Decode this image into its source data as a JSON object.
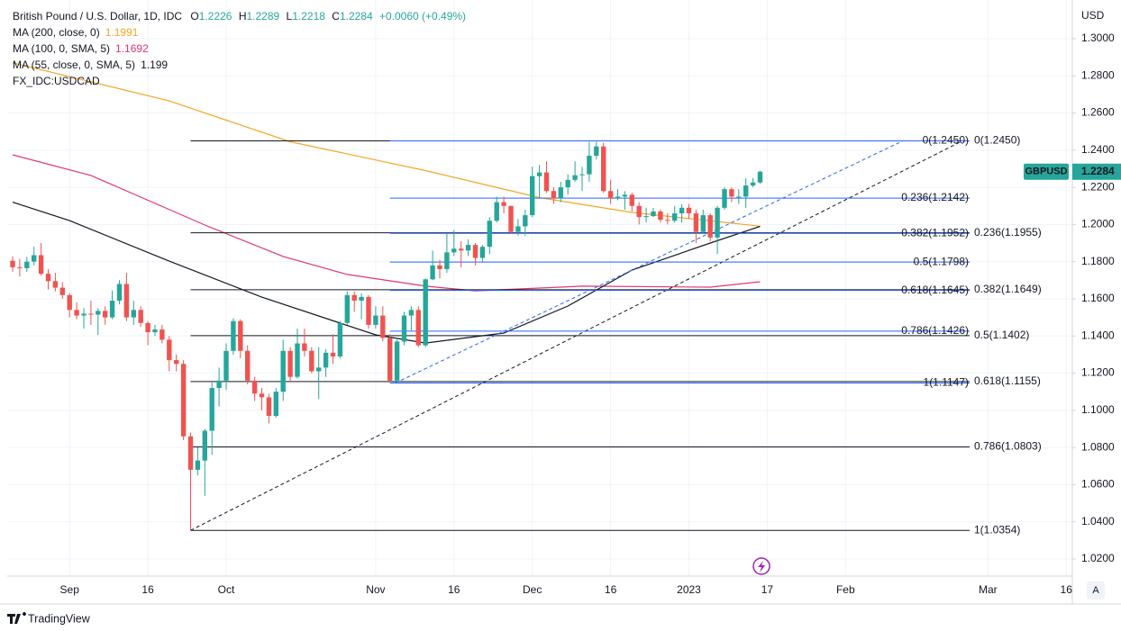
{
  "chart_data": {
    "type": "candlestick",
    "title": "British Pound / U.S. Dollar, 1D, IDC",
    "ohlc_letters": [
      "O",
      "H",
      "L",
      "C"
    ],
    "change": "+0.0060 (+0.49%)",
    "extra_legend": "FX_IDC:USDCAD",
    "axis_unit": "USD",
    "symbol": "GBPUSD",
    "up_color": "#26a69a",
    "down_color": "#ef5350",
    "grid": true,
    "ylim": [
      1.0108,
      1.3208
    ],
    "yticks": [
      {
        "value": 1.3,
        "label": "1.3000"
      },
      {
        "value": 1.28,
        "label": "1.2800"
      },
      {
        "value": 1.26,
        "label": "1.2600"
      },
      {
        "value": 1.24,
        "label": "1.2400"
      },
      {
        "value": 1.22,
        "label": "1.2200"
      },
      {
        "value": 1.2,
        "label": "1.2000"
      },
      {
        "value": 1.18,
        "label": "1.1800"
      },
      {
        "value": 1.16,
        "label": "1.1600"
      },
      {
        "value": 1.14,
        "label": "1.1400"
      },
      {
        "value": 1.12,
        "label": "1.1200"
      },
      {
        "value": 1.1,
        "label": "1.1000"
      },
      {
        "value": 1.08,
        "label": "1.0800"
      },
      {
        "value": 1.06,
        "label": "1.0600"
      },
      {
        "value": 1.04,
        "label": "1.0400"
      },
      {
        "value": 1.02,
        "label": "1.0200"
      }
    ],
    "xticks": [
      {
        "value": "2022-09-01",
        "label": "Sep"
      },
      {
        "value": "2022-09-16",
        "label": "16"
      },
      {
        "value": "2022-10-03",
        "label": "Oct"
      },
      {
        "value": "2022-11-01",
        "label": "Nov"
      },
      {
        "value": "2022-11-16",
        "label": "16"
      },
      {
        "value": "2022-12-01",
        "label": "Dec"
      },
      {
        "value": "2022-12-16",
        "label": "16"
      },
      {
        "value": "2023-01-02",
        "label": "2023"
      },
      {
        "value": "2023-01-17",
        "label": "17"
      },
      {
        "value": "2023-02-01",
        "label": "Feb"
      },
      {
        "value": "2023-03-01",
        "label": "Mar"
      },
      {
        "value": "2023-03-16",
        "label": "16"
      }
    ],
    "x": [
      "2022-08-22",
      "2022-08-23",
      "2022-08-24",
      "2022-08-25",
      "2022-08-26",
      "2022-08-29",
      "2022-08-30",
      "2022-08-31",
      "2022-09-01",
      "2022-09-02",
      "2022-09-05",
      "2022-09-06",
      "2022-09-07",
      "2022-09-08",
      "2022-09-09",
      "2022-09-12",
      "2022-09-13",
      "2022-09-14",
      "2022-09-15",
      "2022-09-16",
      "2022-09-19",
      "2022-09-20",
      "2022-09-21",
      "2022-09-22",
      "2022-09-23",
      "2022-09-26",
      "2022-09-27",
      "2022-09-28",
      "2022-09-29",
      "2022-09-30",
      "2022-10-03",
      "2022-10-04",
      "2022-10-05",
      "2022-10-06",
      "2022-10-07",
      "2022-10-10",
      "2022-10-11",
      "2022-10-12",
      "2022-10-13",
      "2022-10-14",
      "2022-10-17",
      "2022-10-18",
      "2022-10-19",
      "2022-10-20",
      "2022-10-21",
      "2022-10-24",
      "2022-10-25",
      "2022-10-26",
      "2022-10-27",
      "2022-10-28",
      "2022-10-31",
      "2022-11-01",
      "2022-11-02",
      "2022-11-03",
      "2022-11-04",
      "2022-11-07",
      "2022-11-08",
      "2022-11-09",
      "2022-11-10",
      "2022-11-11",
      "2022-11-14",
      "2022-11-15",
      "2022-11-16",
      "2022-11-17",
      "2022-11-18",
      "2022-11-21",
      "2022-11-22",
      "2022-11-23",
      "2022-11-24",
      "2022-11-25",
      "2022-11-28",
      "2022-11-29",
      "2022-11-30",
      "2022-12-01",
      "2022-12-02",
      "2022-12-05",
      "2022-12-06",
      "2022-12-07",
      "2022-12-08",
      "2022-12-09",
      "2022-12-12",
      "2022-12-13",
      "2022-12-14",
      "2022-12-15",
      "2022-12-16",
      "2022-12-19",
      "2022-12-20",
      "2022-12-21",
      "2022-12-22",
      "2022-12-23",
      "2022-12-26",
      "2022-12-27",
      "2022-12-28",
      "2022-12-29",
      "2022-12-30",
      "2023-01-02",
      "2023-01-03",
      "2023-01-04",
      "2023-01-05",
      "2023-01-06",
      "2023-01-09",
      "2023-01-10",
      "2023-01-11",
      "2023-01-12",
      "2023-01-13",
      "2023-01-16"
    ],
    "ohlc": [
      [
        1.1805,
        1.183,
        1.1745,
        1.177
      ],
      [
        1.177,
        1.1815,
        1.172,
        1.1765
      ],
      [
        1.1765,
        1.1825,
        1.1745,
        1.18
      ],
      [
        1.18,
        1.188,
        1.178,
        1.1835
      ],
      [
        1.1835,
        1.19,
        1.1725,
        1.1735
      ],
      [
        1.1735,
        1.176,
        1.165,
        1.1695
      ],
      [
        1.1695,
        1.174,
        1.164,
        1.166
      ],
      [
        1.166,
        1.169,
        1.16,
        1.162
      ],
      [
        1.162,
        1.163,
        1.15,
        1.154
      ],
      [
        1.154,
        1.158,
        1.149,
        1.151
      ],
      [
        1.151,
        1.155,
        1.144,
        1.152
      ],
      [
        1.152,
        1.159,
        1.146,
        1.1515
      ],
      [
        1.1515,
        1.155,
        1.1405,
        1.1535
      ],
      [
        1.1535,
        1.156,
        1.146,
        1.15
      ],
      [
        1.15,
        1.1645,
        1.149,
        1.159
      ],
      [
        1.159,
        1.17,
        1.157,
        1.168
      ],
      [
        1.168,
        1.174,
        1.148,
        1.15
      ],
      [
        1.15,
        1.159,
        1.146,
        1.154
      ],
      [
        1.154,
        1.156,
        1.145,
        1.147
      ],
      [
        1.147,
        1.148,
        1.135,
        1.142
      ],
      [
        1.142,
        1.146,
        1.14,
        1.1435
      ],
      [
        1.1435,
        1.146,
        1.136,
        1.138
      ],
      [
        1.138,
        1.14,
        1.121,
        1.127
      ],
      [
        1.127,
        1.13,
        1.121,
        1.125
      ],
      [
        1.125,
        1.127,
        1.084,
        1.086
      ],
      [
        1.086,
        1.088,
        1.0354,
        1.068
      ],
      [
        1.068,
        1.08,
        1.065,
        1.073
      ],
      [
        1.073,
        1.09,
        1.054,
        1.089
      ],
      [
        1.089,
        1.115,
        1.076,
        1.112
      ],
      [
        1.112,
        1.123,
        1.102,
        1.116
      ],
      [
        1.116,
        1.136,
        1.111,
        1.132
      ],
      [
        1.132,
        1.1495,
        1.13,
        1.148
      ],
      [
        1.148,
        1.149,
        1.128,
        1.132
      ],
      [
        1.132,
        1.135,
        1.114,
        1.116
      ],
      [
        1.116,
        1.118,
        1.105,
        1.109
      ],
      [
        1.109,
        1.112,
        1.1,
        1.107
      ],
      [
        1.107,
        1.109,
        1.093,
        1.097
      ],
      [
        1.097,
        1.112,
        1.096,
        1.11
      ],
      [
        1.11,
        1.138,
        1.105,
        1.132
      ],
      [
        1.132,
        1.134,
        1.115,
        1.118
      ],
      [
        1.118,
        1.144,
        1.117,
        1.136
      ],
      [
        1.136,
        1.144,
        1.129,
        1.132
      ],
      [
        1.132,
        1.134,
        1.12,
        1.121
      ],
      [
        1.121,
        1.134,
        1.106,
        1.123
      ],
      [
        1.123,
        1.133,
        1.118,
        1.131
      ],
      [
        1.131,
        1.141,
        1.125,
        1.129
      ],
      [
        1.129,
        1.148,
        1.128,
        1.147
      ],
      [
        1.147,
        1.164,
        1.146,
        1.162
      ],
      [
        1.162,
        1.164,
        1.153,
        1.159
      ],
      [
        1.159,
        1.163,
        1.149,
        1.161
      ],
      [
        1.161,
        1.162,
        1.144,
        1.146
      ],
      [
        1.146,
        1.156,
        1.144,
        1.151
      ],
      [
        1.151,
        1.156,
        1.137,
        1.139
      ],
      [
        1.139,
        1.141,
        1.115,
        1.116
      ],
      [
        1.116,
        1.138,
        1.115,
        1.137
      ],
      [
        1.137,
        1.153,
        1.135,
        1.151
      ],
      [
        1.151,
        1.156,
        1.143,
        1.154
      ],
      [
        1.154,
        1.156,
        1.134,
        1.135
      ],
      [
        1.135,
        1.171,
        1.134,
        1.1705
      ],
      [
        1.1705,
        1.186,
        1.17,
        1.178
      ],
      [
        1.178,
        1.181,
        1.171,
        1.176
      ],
      [
        1.176,
        1.195,
        1.174,
        1.185
      ],
      [
        1.185,
        1.197,
        1.183,
        1.187
      ],
      [
        1.187,
        1.191,
        1.177,
        1.186
      ],
      [
        1.186,
        1.192,
        1.183,
        1.189
      ],
      [
        1.189,
        1.19,
        1.178,
        1.182
      ],
      [
        1.182,
        1.189,
        1.18,
        1.188
      ],
      [
        1.188,
        1.204,
        1.184,
        1.202
      ],
      [
        1.202,
        1.215,
        1.201,
        1.212
      ],
      [
        1.212,
        1.215,
        1.206,
        1.21
      ],
      [
        1.21,
        1.21,
        1.195,
        1.196
      ],
      [
        1.196,
        1.203,
        1.194,
        1.199
      ],
      [
        1.199,
        1.208,
        1.194,
        1.205
      ],
      [
        1.205,
        1.231,
        1.204,
        1.226
      ],
      [
        1.226,
        1.232,
        1.214,
        1.228
      ],
      [
        1.228,
        1.234,
        1.217,
        1.218
      ],
      [
        1.218,
        1.22,
        1.211,
        1.214
      ],
      [
        1.214,
        1.223,
        1.212,
        1.22
      ],
      [
        1.22,
        1.227,
        1.216,
        1.224
      ],
      [
        1.224,
        1.234,
        1.223,
        1.2265
      ],
      [
        1.2265,
        1.231,
        1.218,
        1.227
      ],
      [
        1.227,
        1.2445,
        1.223,
        1.237
      ],
      [
        1.237,
        1.2445,
        1.235,
        1.242
      ],
      [
        1.242,
        1.244,
        1.217,
        1.218
      ],
      [
        1.218,
        1.224,
        1.211,
        1.214
      ],
      [
        1.214,
        1.219,
        1.213,
        1.215
      ],
      [
        1.215,
        1.218,
        1.208,
        1.216
      ],
      [
        1.216,
        1.217,
        1.207,
        1.21
      ],
      [
        1.21,
        1.212,
        1.2,
        1.204
      ],
      [
        1.204,
        1.209,
        1.201,
        1.2045
      ],
      [
        1.2045,
        1.209,
        1.204,
        1.207
      ],
      [
        1.207,
        1.208,
        1.201,
        1.2025
      ],
      [
        1.2025,
        1.206,
        1.2,
        1.202
      ],
      [
        1.202,
        1.21,
        1.201,
        1.206
      ],
      [
        1.206,
        1.211,
        1.201,
        1.209
      ],
      [
        1.209,
        1.211,
        1.203,
        1.206
      ],
      [
        1.206,
        1.208,
        1.19,
        1.196
      ],
      [
        1.196,
        1.208,
        1.195,
        1.205
      ],
      [
        1.205,
        1.206,
        1.191,
        1.193
      ],
      [
        1.193,
        1.21,
        1.1841,
        1.209
      ],
      [
        1.209,
        1.22,
        1.208,
        1.219
      ],
      [
        1.219,
        1.22,
        1.212,
        1.215
      ],
      [
        1.215,
        1.219,
        1.211,
        1.215
      ],
      [
        1.215,
        1.225,
        1.209,
        1.221
      ],
      [
        1.221,
        1.225,
        1.22,
        1.2226
      ],
      [
        1.2226,
        1.2289,
        1.2218,
        1.2284
      ]
    ],
    "series": [
      {
        "name": "MA (200, close, 0)",
        "color": "#f5a623",
        "x": [
          "2022-08-22",
          "2022-09-21",
          "2022-10-14",
          "2022-11-10",
          "2022-12-02",
          "2022-12-21",
          "2023-01-16"
        ],
        "values": [
          1.287,
          1.2665,
          1.2445,
          1.229,
          1.2145,
          1.2065,
          1.1991
        ]
      },
      {
        "name": "MA (100, 0, SMA, 5)",
        "color": "#e0386e",
        "x": [
          "2022-08-22",
          "2022-09-06",
          "2022-09-28",
          "2022-10-13",
          "2022-10-26",
          "2022-11-10",
          "2022-11-21",
          "2022-12-12",
          "2023-01-05",
          "2023-01-16"
        ],
        "values": [
          1.2375,
          1.2264,
          1.1997,
          1.1828,
          1.1731,
          1.1668,
          1.1643,
          1.1668,
          1.1663,
          1.1692
        ]
      },
      {
        "name": "MA (55, close, 0, SMA, 5)",
        "color": "#131722",
        "x": [
          "2022-08-22",
          "2022-09-01",
          "2022-09-21",
          "2022-10-10",
          "2022-11-01",
          "2022-11-10",
          "2022-11-25",
          "2022-12-08",
          "2022-12-21",
          "2023-01-05",
          "2023-01-16"
        ],
        "values": [
          1.212,
          1.2021,
          1.1803,
          1.1609,
          1.1406,
          1.1362,
          1.1416,
          1.1561,
          1.1755,
          1.19,
          1.199
        ]
      }
    ],
    "fibs": [
      {
        "color": "#131722",
        "start": "2022-09-26",
        "levels": [
          {
            "value": 1.245,
            "label": "0(1.2450)"
          },
          {
            "value": 1.1955,
            "label": "0.236(1.1955)"
          },
          {
            "value": 1.1649,
            "label": "0.382(1.1649)"
          },
          {
            "value": 1.1402,
            "label": "0.5(1.1402)"
          },
          {
            "value": 1.1155,
            "label": "0.618(1.1155)"
          },
          {
            "value": 1.0803,
            "label": "0.786(1.0803)"
          },
          {
            "value": 1.0354,
            "label": "1(1.0354)"
          }
        ]
      },
      {
        "color": "#2962ff",
        "start": "2022-11-03",
        "levels": [
          {
            "value": 1.245,
            "label": "0(1.2450)"
          },
          {
            "value": 1.2142,
            "label": "0.236(1.2142)"
          },
          {
            "value": 1.1952,
            "label": "0.382(1.1952)"
          },
          {
            "value": 1.1798,
            "label": "0.5(1.1798)"
          },
          {
            "value": 1.1645,
            "label": "0.618(1.1645)"
          },
          {
            "value": 1.1426,
            "label": "0.786(1.1426)"
          },
          {
            "value": 1.1147,
            "label": "1(1.1147)"
          }
        ]
      }
    ],
    "brand": "TradingView",
    "scale_button": "A"
  }
}
